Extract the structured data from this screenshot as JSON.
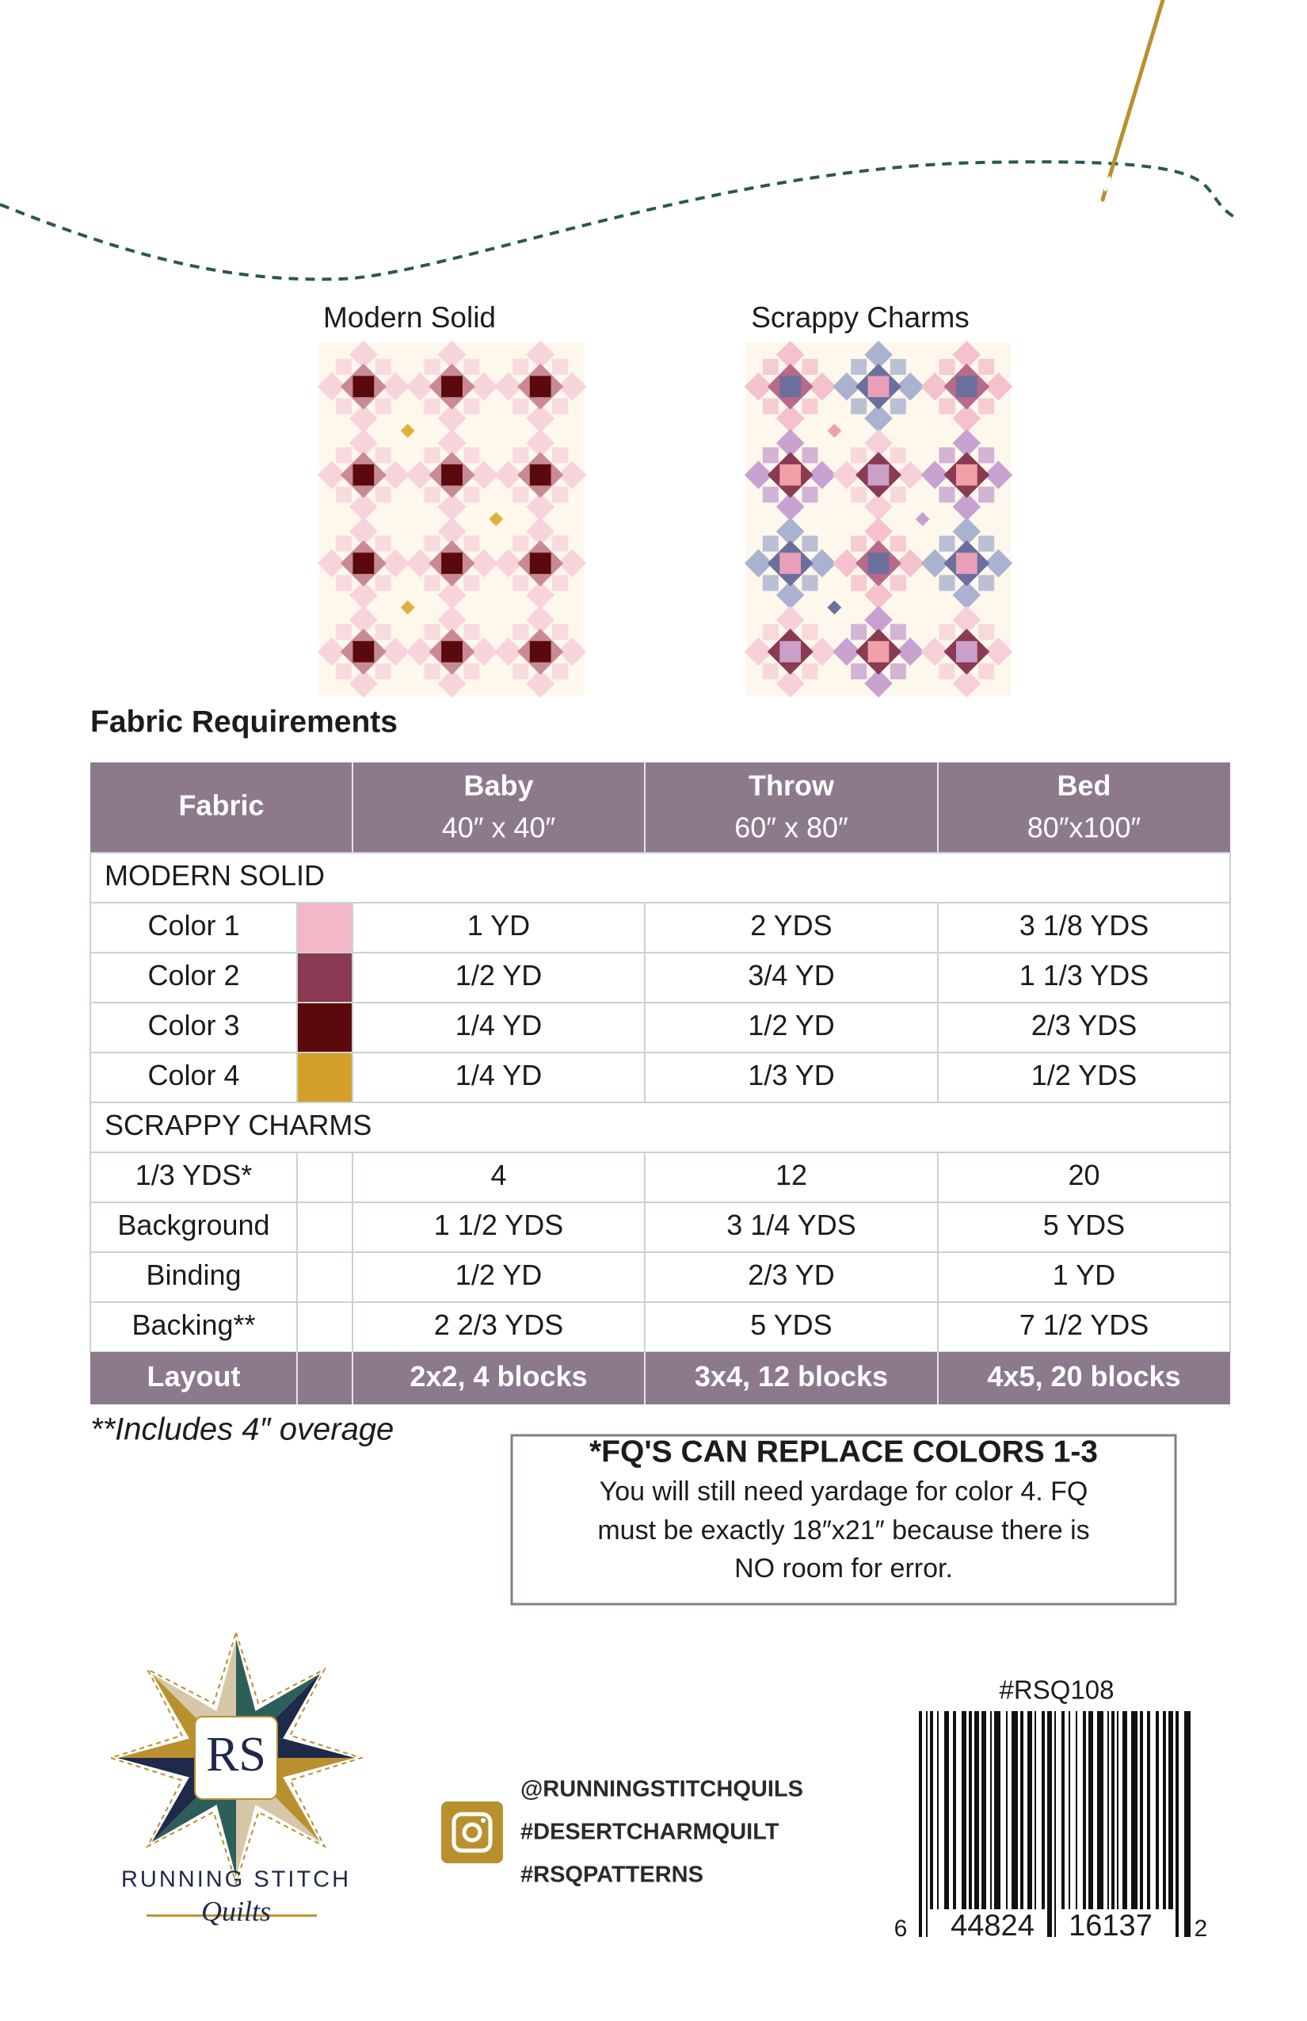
{
  "quilts": [
    "Modern Solid",
    "Scrappy Charms"
  ],
  "section_title": "Fabric Requirements",
  "table": {
    "header": [
      [
        "Fabric"
      ],
      [
        "Baby",
        "40″ x 40″"
      ],
      [
        "Throw",
        "60″ x 80″"
      ],
      [
        "Bed",
        "80″x100″"
      ]
    ],
    "groups": [
      {
        "title": "MODERN SOLID",
        "rows": [
          [
            "Color 1",
            "1 YD",
            "2 YDS",
            "3 1/8 YDS"
          ],
          [
            "Color 2",
            "1/2 YD",
            "3/4 YD",
            "1 1/3 YDS"
          ],
          [
            "Color 3",
            "1/4 YD",
            "1/2 YD",
            "2/3 YDS"
          ],
          [
            "Color 4",
            "1/4 YD",
            "1/3 YD",
            "1/2 YDS"
          ]
        ]
      },
      {
        "title": "SCRAPPY CHARMS",
        "rows": [
          [
            "1/3 YDS*",
            "4",
            "12",
            "20"
          ],
          [
            "Background",
            "1 1/2 YDS",
            "3 1/4 YDS",
            "5 YDS"
          ],
          [
            "Binding",
            "1/2 YD",
            "2/3 YD",
            "1 YD"
          ],
          [
            "Backing**",
            "2 2/3 YDS",
            "5 YDS",
            "7 1/2 YDS"
          ]
        ]
      }
    ],
    "footer": [
      "Layout",
      "2x2, 4 blocks",
      "3x4, 12 blocks",
      "4x5, 20 blocks"
    ]
  },
  "note": "**Includes 4″ overage",
  "callout": {
    "title": "*FQ'S CAN REPLACE COLORS 1-3",
    "lines": [
      "You will still need yardage for color 4. FQ",
      "must be exactly 18″x21″ because there is",
      "NO room for error."
    ]
  },
  "logo": {
    "monogram": "RS",
    "name": "RUNNING STITCH",
    "script": "Quilts"
  },
  "social": [
    "@RUNNINGSTITCHQUILS",
    "#DESERTCHARMQUILT",
    "#RSQPATTERNS"
  ],
  "barcode": {
    "sku": "#RSQ108",
    "digits": [
      "6",
      "44824",
      "16137",
      "2"
    ]
  }
}
